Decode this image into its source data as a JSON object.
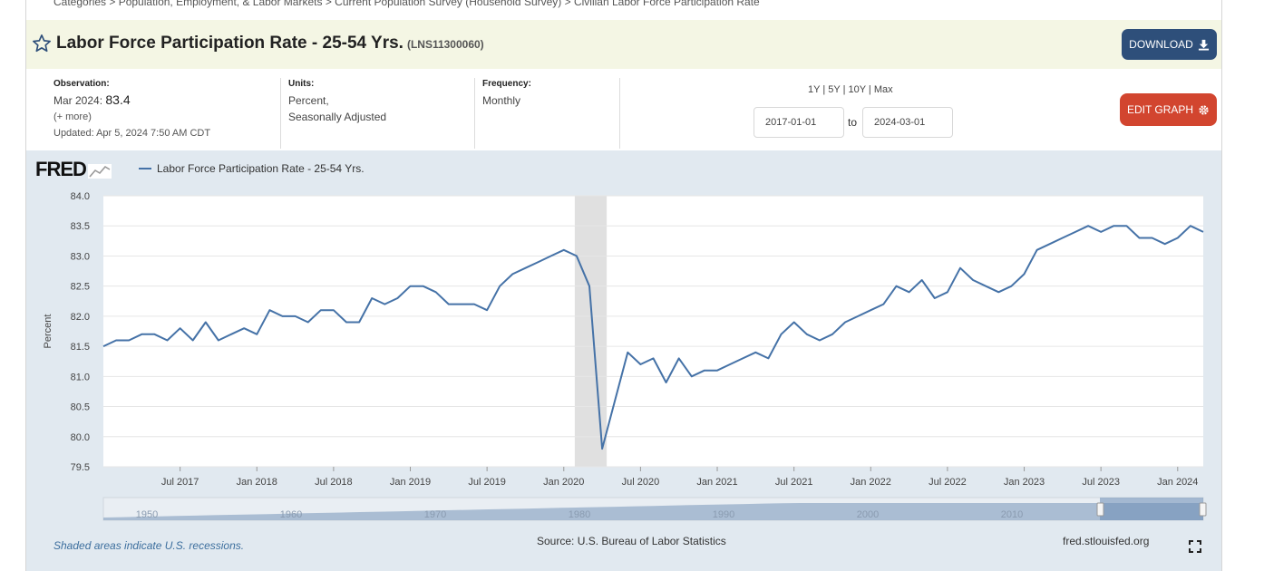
{
  "breadcrumb": "Categories > Population, Employment, & Labor Markets > Current Population Survey (Household Survey) > Civilian Labor Force Participation Rate",
  "header": {
    "title": "Labor Force Participation Rate - 25-54 Yrs.",
    "series_id": "(LNS11300060)",
    "download_label": "DOWNLOAD"
  },
  "meta": {
    "observation_label": "Observation:",
    "observation_date": "Mar 2024:",
    "observation_value": "83.4",
    "more_label": "(+ more)",
    "updated": "Updated: Apr 5, 2024 7:50 AM CDT",
    "units_label": "Units:",
    "units_line1": "Percent,",
    "units_line2": "Seasonally Adjusted",
    "frequency_label": "Frequency:",
    "frequency_value": "Monthly"
  },
  "controls": {
    "range_1y": "1Y",
    "range_5y": "5Y",
    "range_10y": "10Y",
    "range_max": "Max",
    "start_date": "2017-01-01",
    "to_label": "to",
    "end_date": "2024-03-01",
    "edit_label": "EDIT GRAPH"
  },
  "graph": {
    "logo": "FRED",
    "legend": "Labor Force Participation Rate - 25-54 Yrs.",
    "footer_note": "Shaded areas indicate U.S. recessions.",
    "source": "Source: U.S. Bureau of Labor Statistics",
    "site": "fred.stlouisfed.org"
  },
  "colors": {
    "series": "#4572a7",
    "recession": "#e0e0e0",
    "download_button": "#2e4f7a",
    "edit_button": "#d2452f"
  },
  "chart_data": {
    "type": "line",
    "ylabel": "Percent",
    "ylim": [
      79.5,
      84.0
    ],
    "yticks": [
      "84.0",
      "83.5",
      "83.0",
      "82.5",
      "82.0",
      "81.5",
      "81.0",
      "80.5",
      "80.0",
      "79.5"
    ],
    "xticks": [
      "Jul 2017",
      "Jan 2018",
      "Jul 2018",
      "Jan 2019",
      "Jul 2019",
      "Jan 2020",
      "Jul 2020",
      "Jan 2021",
      "Jul 2021",
      "Jan 2022",
      "Jul 2022",
      "Jan 2023",
      "Jul 2023",
      "Jan 2024"
    ],
    "x_start": "2017-01",
    "x_end": "2024-03",
    "grid": true,
    "recession": [
      "2020-02",
      "2020-04"
    ],
    "series": [
      {
        "name": "Labor Force Participation Rate - 25-54 Yrs.",
        "dates": [
          "2017-01",
          "2017-02",
          "2017-03",
          "2017-04",
          "2017-05",
          "2017-06",
          "2017-07",
          "2017-08",
          "2017-09",
          "2017-10",
          "2017-11",
          "2017-12",
          "2018-01",
          "2018-02",
          "2018-03",
          "2018-04",
          "2018-05",
          "2018-06",
          "2018-07",
          "2018-08",
          "2018-09",
          "2018-10",
          "2018-11",
          "2018-12",
          "2019-01",
          "2019-02",
          "2019-03",
          "2019-04",
          "2019-05",
          "2019-06",
          "2019-07",
          "2019-08",
          "2019-09",
          "2019-10",
          "2019-11",
          "2019-12",
          "2020-01",
          "2020-02",
          "2020-03",
          "2020-04",
          "2020-05",
          "2020-06",
          "2020-07",
          "2020-08",
          "2020-09",
          "2020-10",
          "2020-11",
          "2020-12",
          "2021-01",
          "2021-02",
          "2021-03",
          "2021-04",
          "2021-05",
          "2021-06",
          "2021-07",
          "2021-08",
          "2021-09",
          "2021-10",
          "2021-11",
          "2021-12",
          "2022-01",
          "2022-02",
          "2022-03",
          "2022-04",
          "2022-05",
          "2022-06",
          "2022-07",
          "2022-08",
          "2022-09",
          "2022-10",
          "2022-11",
          "2022-12",
          "2023-01",
          "2023-02",
          "2023-03",
          "2023-04",
          "2023-05",
          "2023-06",
          "2023-07",
          "2023-08",
          "2023-09",
          "2023-10",
          "2023-11",
          "2023-12",
          "2024-01",
          "2024-02",
          "2024-03"
        ],
        "values": [
          81.5,
          81.6,
          81.6,
          81.7,
          81.7,
          81.6,
          81.8,
          81.6,
          81.9,
          81.6,
          81.7,
          81.8,
          81.7,
          82.1,
          82.0,
          82.0,
          81.9,
          82.1,
          82.1,
          81.9,
          81.9,
          82.3,
          82.2,
          82.3,
          82.5,
          82.5,
          82.4,
          82.2,
          82.2,
          82.2,
          82.1,
          82.5,
          82.7,
          82.8,
          82.9,
          83.0,
          83.1,
          83.0,
          82.5,
          79.8,
          80.6,
          81.4,
          81.2,
          81.3,
          80.9,
          81.3,
          81.0,
          81.1,
          81.1,
          81.2,
          81.3,
          81.4,
          81.3,
          81.7,
          81.9,
          81.7,
          81.6,
          81.7,
          81.9,
          82.0,
          82.1,
          82.2,
          82.5,
          82.4,
          82.6,
          82.3,
          82.4,
          82.8,
          82.6,
          82.5,
          82.4,
          82.5,
          82.7,
          83.1,
          83.2,
          83.3,
          83.4,
          83.5,
          83.4,
          83.5,
          83.5,
          83.3,
          83.3,
          83.2,
          83.3,
          83.5,
          83.4
        ]
      }
    ],
    "navigator_labels": [
      "1950",
      "1960",
      "1970",
      "1980",
      "1990",
      "2000",
      "2010"
    ]
  }
}
